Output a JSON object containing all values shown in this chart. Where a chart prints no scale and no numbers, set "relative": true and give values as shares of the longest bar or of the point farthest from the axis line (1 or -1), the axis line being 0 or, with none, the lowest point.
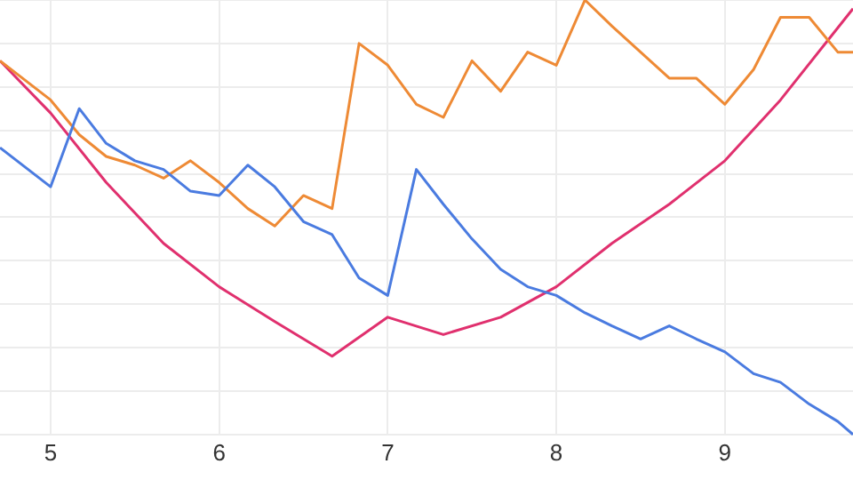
{
  "chart_data": {
    "type": "line",
    "relative": true,
    "grid": true,
    "marker": "none",
    "legend": false,
    "xlim": [
      4.7,
      9.76
    ],
    "xticks": [
      5,
      6,
      7,
      8,
      9
    ],
    "x": [
      4.7,
      5,
      5.17,
      5.33,
      5.5,
      5.67,
      5.83,
      6,
      6.17,
      6.33,
      6.5,
      6.67,
      6.83,
      7,
      7.17,
      7.33,
      7.5,
      7.67,
      7.83,
      8,
      8.17,
      8.33,
      8.5,
      8.67,
      8.83,
      9,
      9.17,
      9.33,
      9.5,
      9.67,
      9.76
    ],
    "series": [
      {
        "color": "#4a7be0",
        "values": [
          0.66,
          0.57,
          0.75,
          0.67,
          0.63,
          0.61,
          0.56,
          0.55,
          0.62,
          0.57,
          0.49,
          0.46,
          0.36,
          0.32,
          0.61,
          0.53,
          0.45,
          0.38,
          0.34,
          0.32,
          0.28,
          0.25,
          0.22,
          0.25,
          0.22,
          0.19,
          0.14,
          0.12,
          0.07,
          0.03,
          0
        ]
      },
      {
        "color": "#ee8a35",
        "values": [
          0.86,
          0.77,
          0.69,
          0.64,
          0.62,
          0.59,
          0.63,
          0.58,
          0.52,
          0.48,
          0.55,
          0.52,
          0.9,
          0.85,
          0.76,
          0.73,
          0.86,
          0.79,
          0.88,
          0.85,
          1,
          0.94,
          0.88,
          0.82,
          0.82,
          0.76,
          0.84,
          0.96,
          0.96,
          0.88,
          0.88
        ]
      },
      {
        "color": "#e0306e",
        "x": [
          4.7,
          5,
          5.33,
          5.67,
          6,
          6.33,
          6.67,
          7,
          7.33,
          7.67,
          8,
          8.33,
          8.67,
          9,
          9.33,
          9.76
        ],
        "values": [
          0.86,
          0.74,
          0.58,
          0.44,
          0.34,
          0.26,
          0.18,
          0.27,
          0.23,
          0.27,
          0.34,
          0.44,
          0.53,
          0.63,
          0.77,
          0.98
        ]
      }
    ]
  }
}
